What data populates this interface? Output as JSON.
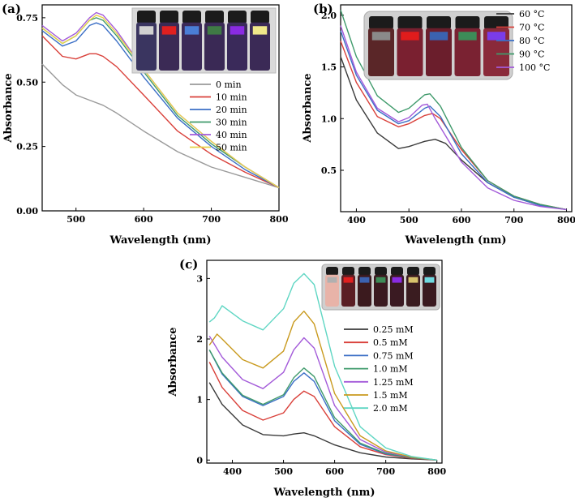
{
  "colors": {
    "black": "#3a3a3a",
    "red": "#d9403a",
    "blue": "#3b6fc6",
    "green": "#3f9a6b",
    "purple": "#a35ad9",
    "gold": "#c99a1e",
    "teal": "#5fd6c3",
    "grey": "#9a9a9a",
    "yellow": "#e8d24a",
    "mint": "#6fd9c0"
  },
  "chart_data": [
    {
      "panel_label": "(a)",
      "type": "line",
      "title": "",
      "xlabel": "Wavelength (nm)",
      "ylabel": "Absorbance",
      "xlim": [
        450,
        800
      ],
      "ylim": [
        0,
        0.8
      ],
      "xticks": [
        "500",
        "600",
        "700",
        "800"
      ],
      "yticks": [
        "0.00",
        "0.25",
        "0.50",
        "0.75"
      ],
      "inset_icon": "vials-photo-icon",
      "series": [
        {
          "name": "0 min",
          "x": [
            450,
            480,
            500,
            520,
            540,
            560,
            600,
            650,
            700,
            750,
            800
          ],
          "values": [
            0.57,
            0.49,
            0.45,
            0.43,
            0.41,
            0.38,
            0.31,
            0.23,
            0.17,
            0.13,
            0.09
          ]
        },
        {
          "name": "10 min",
          "x": [
            450,
            480,
            500,
            520,
            530,
            540,
            560,
            600,
            650,
            700,
            750,
            800
          ],
          "values": [
            0.68,
            0.6,
            0.59,
            0.61,
            0.61,
            0.6,
            0.56,
            0.45,
            0.31,
            0.22,
            0.15,
            0.09
          ]
        },
        {
          "name": "20 min",
          "x": [
            450,
            480,
            500,
            520,
            530,
            540,
            560,
            600,
            650,
            700,
            750,
            800
          ],
          "values": [
            0.7,
            0.64,
            0.66,
            0.72,
            0.73,
            0.72,
            0.66,
            0.52,
            0.36,
            0.25,
            0.16,
            0.09
          ]
        },
        {
          "name": "30 min",
          "x": [
            450,
            480,
            500,
            520,
            530,
            540,
            560,
            600,
            650,
            700,
            750,
            800
          ],
          "values": [
            0.71,
            0.65,
            0.68,
            0.74,
            0.75,
            0.74,
            0.68,
            0.54,
            0.37,
            0.26,
            0.17,
            0.09
          ]
        },
        {
          "name": "40 min",
          "x": [
            450,
            480,
            500,
            520,
            530,
            540,
            560,
            600,
            650,
            700,
            750,
            800
          ],
          "values": [
            0.72,
            0.66,
            0.69,
            0.75,
            0.77,
            0.76,
            0.7,
            0.55,
            0.38,
            0.27,
            0.17,
            0.09
          ]
        },
        {
          "name": "50 min",
          "x": [
            450,
            480,
            500,
            520,
            530,
            540,
            560,
            600,
            650,
            700,
            750,
            800
          ],
          "values": [
            0.71,
            0.65,
            0.68,
            0.74,
            0.76,
            0.75,
            0.69,
            0.55,
            0.38,
            0.27,
            0.17,
            0.09
          ]
        }
      ]
    },
    {
      "panel_label": "(b)",
      "type": "line",
      "title": "",
      "xlabel": "Wavelength (nm)",
      "ylabel": "Absorbance",
      "xlim": [
        370,
        810
      ],
      "ylim": [
        0.1,
        2.1
      ],
      "xticks": [
        "400",
        "500",
        "600",
        "700",
        "800"
      ],
      "yticks": [
        "0.5",
        "1.0",
        "1.5",
        "2.0"
      ],
      "inset_icon": "vials-photo-icon",
      "series": [
        {
          "name": "60 °C",
          "x": [
            370,
            400,
            440,
            480,
            500,
            530,
            550,
            570,
            600,
            650,
            700,
            750,
            800
          ],
          "values": [
            1.6,
            1.18,
            0.86,
            0.71,
            0.73,
            0.78,
            0.8,
            0.76,
            0.6,
            0.38,
            0.24,
            0.16,
            0.12
          ]
        },
        {
          "name": "70 °C",
          "x": [
            370,
            400,
            440,
            480,
            500,
            530,
            545,
            560,
            600,
            650,
            700,
            750,
            800
          ],
          "values": [
            1.75,
            1.35,
            1.02,
            0.92,
            0.95,
            1.03,
            1.05,
            1.0,
            0.7,
            0.4,
            0.25,
            0.17,
            0.12
          ]
        },
        {
          "name": "80 °C",
          "x": [
            370,
            400,
            440,
            480,
            500,
            530,
            540,
            560,
            600,
            650,
            700,
            750,
            800
          ],
          "values": [
            1.85,
            1.42,
            1.08,
            0.95,
            0.98,
            1.1,
            1.12,
            1.02,
            0.66,
            0.38,
            0.24,
            0.16,
            0.12
          ]
        },
        {
          "name": "90 °C",
          "x": [
            370,
            400,
            440,
            480,
            500,
            530,
            540,
            560,
            600,
            650,
            700,
            750,
            800
          ],
          "values": [
            2.05,
            1.6,
            1.22,
            1.06,
            1.1,
            1.23,
            1.24,
            1.12,
            0.72,
            0.4,
            0.25,
            0.17,
            0.12
          ]
        },
        {
          "name": "100 °C",
          "x": [
            370,
            400,
            440,
            480,
            500,
            525,
            535,
            550,
            600,
            650,
            700,
            750,
            800
          ],
          "values": [
            1.9,
            1.45,
            1.1,
            0.97,
            1.01,
            1.13,
            1.14,
            1.0,
            0.58,
            0.33,
            0.21,
            0.15,
            0.12
          ]
        }
      ]
    },
    {
      "panel_label": "(c)",
      "type": "line",
      "title": "",
      "xlabel": "Wavelength (nm)",
      "ylabel": "Absorbance",
      "xlim": [
        350,
        810
      ],
      "ylim": [
        -0.05,
        3.3
      ],
      "xticks": [
        "400",
        "500",
        "600",
        "700",
        "800"
      ],
      "yticks": [
        "0",
        "1",
        "2",
        "3"
      ],
      "inset_icon": "vials-photo-icon",
      "series": [
        {
          "name": "0.25 mM",
          "x": [
            355,
            380,
            420,
            460,
            500,
            520,
            540,
            560,
            600,
            650,
            700,
            750,
            800
          ],
          "values": [
            1.28,
            0.92,
            0.58,
            0.42,
            0.4,
            0.43,
            0.45,
            0.4,
            0.25,
            0.12,
            0.05,
            0.02,
            0.0
          ]
        },
        {
          "name": "0.5 mM",
          "x": [
            355,
            380,
            420,
            460,
            500,
            520,
            540,
            560,
            600,
            650,
            700,
            750,
            800
          ],
          "values": [
            1.62,
            1.2,
            0.82,
            0.66,
            0.78,
            1.0,
            1.14,
            1.05,
            0.55,
            0.22,
            0.09,
            0.03,
            0.0
          ]
        },
        {
          "name": "0.75 mM",
          "x": [
            355,
            380,
            420,
            460,
            500,
            520,
            540,
            560,
            600,
            650,
            700,
            750,
            800
          ],
          "values": [
            1.82,
            1.42,
            1.05,
            0.9,
            1.05,
            1.3,
            1.44,
            1.3,
            0.65,
            0.26,
            0.1,
            0.04,
            0.0
          ]
        },
        {
          "name": "1.0 mM",
          "x": [
            355,
            380,
            420,
            460,
            500,
            520,
            540,
            560,
            600,
            650,
            700,
            750,
            800
          ],
          "values": [
            1.82,
            1.44,
            1.07,
            0.92,
            1.08,
            1.36,
            1.52,
            1.38,
            0.7,
            0.28,
            0.11,
            0.04,
            0.0
          ]
        },
        {
          "name": "1.25 mM",
          "x": [
            355,
            380,
            420,
            460,
            500,
            520,
            540,
            560,
            600,
            650,
            700,
            750,
            800
          ],
          "values": [
            2.05,
            1.7,
            1.33,
            1.18,
            1.45,
            1.82,
            2.02,
            1.85,
            0.9,
            0.34,
            0.13,
            0.05,
            0.0
          ]
        },
        {
          "name": "1.5 mM",
          "x": [
            355,
            370,
            380,
            420,
            460,
            500,
            520,
            540,
            560,
            600,
            650,
            700,
            750,
            800
          ],
          "values": [
            1.9,
            2.08,
            2.0,
            1.66,
            1.52,
            1.8,
            2.28,
            2.46,
            2.25,
            1.1,
            0.4,
            0.15,
            0.05,
            0.0
          ]
        },
        {
          "name": "2.0 mM",
          "x": [
            355,
            365,
            375,
            380,
            420,
            460,
            500,
            520,
            540,
            560,
            600,
            650,
            700,
            750,
            800
          ],
          "values": [
            2.28,
            2.35,
            2.48,
            2.55,
            2.3,
            2.15,
            2.5,
            2.92,
            3.08,
            2.9,
            1.55,
            0.55,
            0.2,
            0.06,
            0.0
          ]
        }
      ]
    }
  ]
}
